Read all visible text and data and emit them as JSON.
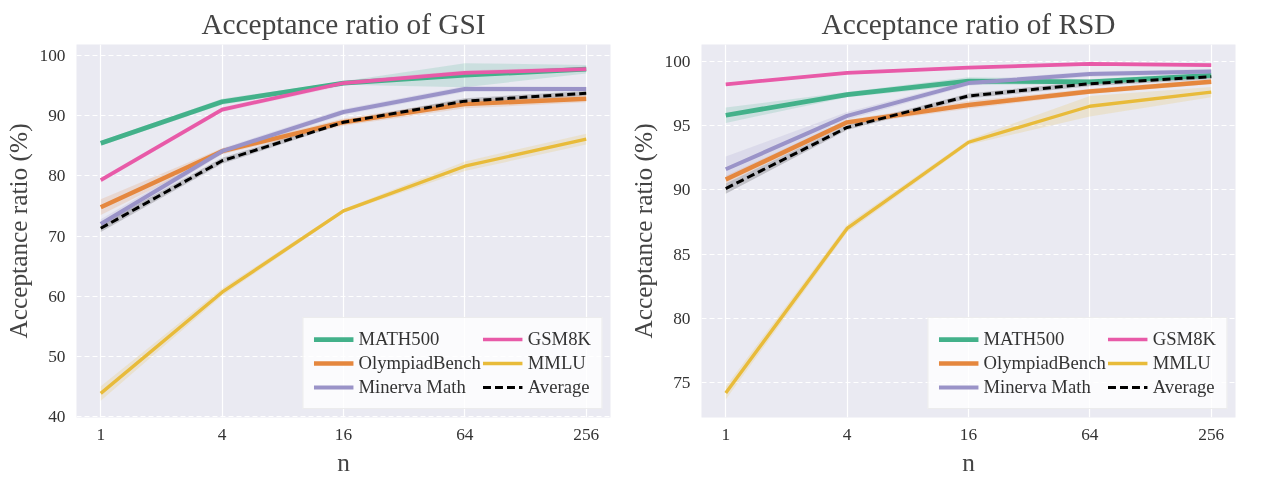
{
  "chart_data": [
    {
      "type": "line",
      "title": "Acceptance ratio of GSI",
      "xlabel": "n",
      "ylabel": "Acceptance ratio (%)",
      "x": [
        1,
        4,
        16,
        64,
        256
      ],
      "log": "x",
      "xlim": [
        0.758,
        337.8
      ],
      "xticks": [
        1,
        4,
        16,
        64,
        256
      ],
      "ylim": [
        39.9,
        101.8
      ],
      "yticks": [
        40,
        50,
        60,
        70,
        80,
        90,
        100
      ],
      "grid": true,
      "legend": "bottom right",
      "line_style": "solid",
      "marker": "none",
      "series": [
        {
          "name": "MATH500",
          "color": "#43b18a",
          "values": [
            85.4,
            92.3,
            95.4,
            96.7,
            97.7
          ],
          "lower": [
            85.0,
            91.8,
            95.1,
            94.7,
            97.0
          ],
          "upper": [
            85.8,
            92.8,
            95.7,
            98.7,
            98.4
          ]
        },
        {
          "name": "OlympiadBench",
          "color": "#e5873e",
          "values": [
            74.8,
            84.1,
            88.9,
            91.9,
            92.8
          ],
          "lower": [
            73.5,
            83.6,
            88.3,
            91.2,
            92.2
          ],
          "upper": [
            76.1,
            84.6,
            89.5,
            92.6,
            93.4
          ]
        },
        {
          "name": "Minerva Math",
          "color": "#9a93c8",
          "values": [
            72.0,
            84.1,
            90.6,
            94.4,
            94.4
          ],
          "lower": [
            71.2,
            83.6,
            90.1,
            93.9,
            94.0
          ],
          "upper": [
            72.8,
            84.6,
            91.1,
            94.9,
            94.8
          ]
        },
        {
          "name": "GSM8K",
          "color": "#e85aa8",
          "values": [
            79.3,
            91.0,
            95.4,
            97.1,
            97.7
          ],
          "lower": [
            78.9,
            90.6,
            95.0,
            96.7,
            97.3
          ],
          "upper": [
            79.7,
            91.4,
            95.8,
            97.5,
            98.1
          ]
        },
        {
          "name": "MMLU",
          "color": "#e8bb3a",
          "values": [
            43.9,
            60.7,
            74.2,
            81.6,
            86.1
          ],
          "lower": [
            42.7,
            60.1,
            73.9,
            80.8,
            85.2
          ],
          "upper": [
            45.1,
            61.3,
            74.5,
            82.4,
            87.0
          ]
        },
        {
          "name": "Average",
          "color": "#000000",
          "line_style": "dashed",
          "values": [
            71.3,
            82.5,
            88.9,
            92.4,
            93.7
          ],
          "lower": [
            70.7,
            82.0,
            88.6,
            91.9,
            93.3
          ],
          "upper": [
            71.9,
            83.0,
            89.2,
            92.9,
            94.1
          ]
        }
      ]
    },
    {
      "type": "line",
      "title": "Acceptance ratio of RSD",
      "xlabel": "n",
      "ylabel": "Acceptance ratio (%)",
      "x": [
        1,
        4,
        16,
        64,
        256
      ],
      "log": "x",
      "xlim": [
        0.758,
        337.8
      ],
      "xticks": [
        1,
        4,
        16,
        64,
        256
      ],
      "ylim": [
        72.3,
        101.3
      ],
      "yticks": [
        75,
        80,
        85,
        90,
        95,
        100
      ],
      "grid": true,
      "legend": "bottom right",
      "line_style": "solid",
      "marker": "none",
      "series": [
        {
          "name": "MATH500",
          "color": "#43b18a",
          "values": [
            95.8,
            97.4,
            98.45,
            98.4,
            98.9
          ],
          "lower": [
            95.2,
            97.2,
            98.15,
            98.2,
            98.7
          ],
          "upper": [
            96.4,
            97.6,
            98.75,
            98.6,
            99.1
          ]
        },
        {
          "name": "OlympiadBench",
          "color": "#e5873e",
          "values": [
            90.8,
            95.25,
            96.6,
            97.65,
            98.4
          ],
          "lower": [
            90.5,
            95.05,
            96.3,
            97.45,
            98.2
          ],
          "upper": [
            91.1,
            95.45,
            96.9,
            97.85,
            98.6
          ]
        },
        {
          "name": "Minerva Math",
          "color": "#9a93c8",
          "values": [
            91.6,
            95.75,
            98.3,
            99.0,
            99.2
          ],
          "lower": [
            90.6,
            95.45,
            98.1,
            98.8,
            99.0
          ],
          "upper": [
            92.6,
            96.05,
            98.5,
            99.2,
            99.4
          ]
        },
        {
          "name": "GSM8K",
          "color": "#e85aa8",
          "values": [
            98.2,
            99.1,
            99.5,
            99.8,
            99.7
          ],
          "lower": [
            98.1,
            99.0,
            99.4,
            99.7,
            99.6
          ],
          "upper": [
            98.3,
            99.2,
            99.6,
            99.9,
            99.8
          ]
        },
        {
          "name": "MMLU",
          "color": "#e8bb3a",
          "values": [
            74.2,
            87.0,
            93.7,
            96.5,
            97.6
          ],
          "lower": [
            73.7,
            86.7,
            93.5,
            95.7,
            97.2
          ],
          "upper": [
            74.7,
            87.3,
            93.9,
            97.3,
            98.0
          ]
        },
        {
          "name": "Average",
          "color": "#000000",
          "line_style": "dashed",
          "values": [
            90.1,
            94.85,
            97.3,
            98.25,
            98.8
          ],
          "lower": [
            89.7,
            94.65,
            97.1,
            98.05,
            98.6
          ],
          "upper": [
            90.5,
            95.05,
            97.5,
            98.45,
            99.0
          ]
        }
      ]
    }
  ]
}
